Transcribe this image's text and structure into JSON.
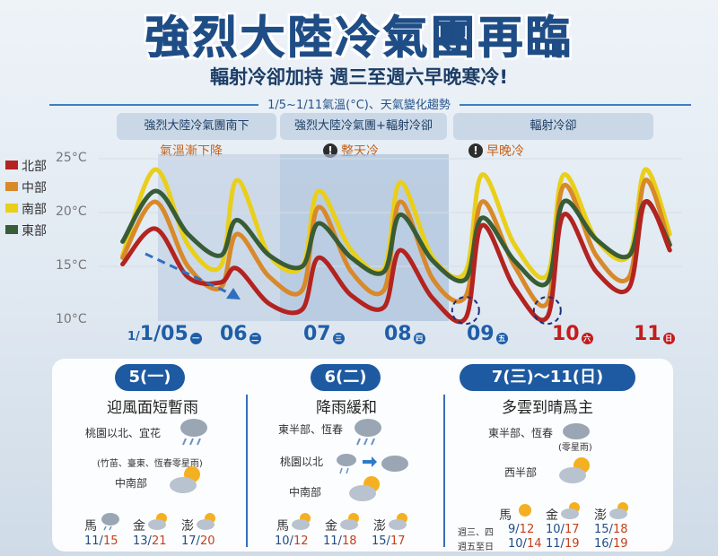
{
  "title": "強烈大陸冷氣團再臨",
  "subtitle": "輻射冷卻加持 週三至週六早晚寒冷!",
  "range_label": "1/5~1/11氣溫(°C)、天氣變化趨勢",
  "phases": [
    {
      "label": "強烈大陸冷氣團南下",
      "note": "氣溫漸下降",
      "alert": false
    },
    {
      "label": "強烈大陸冷氣團+輻射冷卻",
      "note": "整天冷",
      "alert": true
    },
    {
      "label": "輻射冷卻",
      "note": "早晚冷",
      "alert": true
    }
  ],
  "alert_glyph": "!",
  "colors": {
    "north": "#b3231f",
    "central": "#d8892a",
    "south": "#e9cf1a",
    "east": "#385c35",
    "accent": "#1d5aa1",
    "holiday": "#c41c1c"
  },
  "chart_data": {
    "type": "line",
    "ylim": [
      10,
      25
    ],
    "yticks": [
      "25°C",
      "20°C",
      "15°C",
      "10°C"
    ],
    "x_labels": [
      {
        "day": "1/05",
        "weekday": "一",
        "holiday": false
      },
      {
        "day": "06",
        "weekday": "二",
        "holiday": false
      },
      {
        "day": "07",
        "weekday": "三",
        "holiday": false
      },
      {
        "day": "08",
        "weekday": "四",
        "holiday": false
      },
      {
        "day": "09",
        "weekday": "五",
        "holiday": false
      },
      {
        "day": "10",
        "weekday": "六",
        "holiday": true
      },
      {
        "day": "11",
        "weekday": "日",
        "holiday": true
      }
    ],
    "x": [
      4.6,
      5.0,
      5.4,
      5.8,
      6.0,
      6.4,
      6.8,
      7.0,
      7.4,
      7.8,
      8.0,
      8.4,
      8.8,
      9.0,
      9.4,
      9.8,
      10.0,
      10.4,
      10.8,
      11.0,
      11.3
    ],
    "series": [
      {
        "name": "北部",
        "key": "north",
        "values": [
          15.2,
          18.5,
          14.0,
          13.5,
          14.8,
          11.5,
          11.0,
          15.8,
          12.3,
          11.2,
          16.5,
          12.0,
          10.2,
          18.8,
          13.0,
          10.3,
          19.8,
          14.5,
          13.0,
          21.0,
          16.5
        ]
      },
      {
        "name": "中部",
        "key": "central",
        "values": [
          15.8,
          21.0,
          15.0,
          13.0,
          18.0,
          14.0,
          12.8,
          20.5,
          14.5,
          12.8,
          21.0,
          13.8,
          12.2,
          21.0,
          15.0,
          11.6,
          22.5,
          16.0,
          14.0,
          23.0,
          17.0
        ]
      },
      {
        "name": "南部",
        "key": "south",
        "values": [
          16.0,
          24.0,
          17.0,
          15.0,
          23.0,
          16.0,
          15.0,
          22.0,
          16.5,
          14.8,
          22.8,
          15.8,
          14.5,
          23.5,
          17.0,
          14.2,
          23.5,
          17.5,
          16.0,
          24.0,
          18.0
        ]
      },
      {
        "name": "東部",
        "key": "east",
        "values": [
          17.3,
          22.0,
          18.0,
          16.0,
          19.3,
          16.0,
          15.0,
          19.0,
          15.8,
          14.5,
          19.8,
          15.5,
          13.8,
          19.5,
          15.5,
          13.5,
          21.0,
          17.5,
          16.0,
          21.0,
          17.0
        ]
      }
    ]
  },
  "forecast": {
    "col1": {
      "header": "5(一)",
      "headline": "迎風面短暫雨",
      "regions": [
        {
          "label": "桃園以北、宜花",
          "icon": "rain-cloud-icon"
        },
        {
          "label": "(竹苗、臺東、恆春零星雨)",
          "icon": "none"
        },
        {
          "label": "中南部",
          "icon": "partly-cloudy-icon"
        }
      ],
      "islands": [
        {
          "name": "馬",
          "temp_low": "11",
          "temp_high": "15",
          "icon": "rain-cloud-icon"
        },
        {
          "name": "金",
          "temp_low": "13",
          "temp_high": "21",
          "icon": "partly-cloudy-icon"
        },
        {
          "name": "澎",
          "temp_low": "17",
          "temp_high": "20",
          "icon": "partly-cloudy-icon"
        }
      ]
    },
    "col2": {
      "header": "6(二)",
      "headline": "降雨緩和",
      "regions": [
        {
          "label": "東半部、恆春",
          "icon": "rain-cloud-icon"
        },
        {
          "label": "桃園以北",
          "icon": "rain-to-cloud-icon"
        },
        {
          "label": "中南部",
          "icon": "partly-cloudy-icon"
        }
      ],
      "islands": [
        {
          "name": "馬",
          "temp_low": "10",
          "temp_high": "12",
          "icon": "partly-cloudy-icon"
        },
        {
          "name": "金",
          "temp_low": "11",
          "temp_high": "18",
          "icon": "partly-cloudy-icon"
        },
        {
          "name": "澎",
          "temp_low": "15",
          "temp_high": "17",
          "icon": "partly-cloudy-icon"
        }
      ]
    },
    "col3": {
      "header": "7(三)～11(日)",
      "headline": "多雲到晴爲主",
      "regions": [
        {
          "label": "東半部、恆春",
          "icon": "cloud-icon"
        },
        {
          "label": "(零星雨)",
          "icon": "none"
        },
        {
          "label": "西半部",
          "icon": "partly-cloudy-icon"
        }
      ],
      "island_names": [
        "馬",
        "金",
        "澎"
      ],
      "rows": [
        {
          "label": "週三、四",
          "temps": [
            [
              "9",
              "12"
            ],
            [
              "10",
              "17"
            ],
            [
              "15",
              "18"
            ]
          ]
        },
        {
          "label": "週五至日",
          "temps": [
            [
              "10",
              "14"
            ],
            [
              "11",
              "19"
            ],
            [
              "16",
              "19"
            ]
          ]
        }
      ]
    }
  }
}
